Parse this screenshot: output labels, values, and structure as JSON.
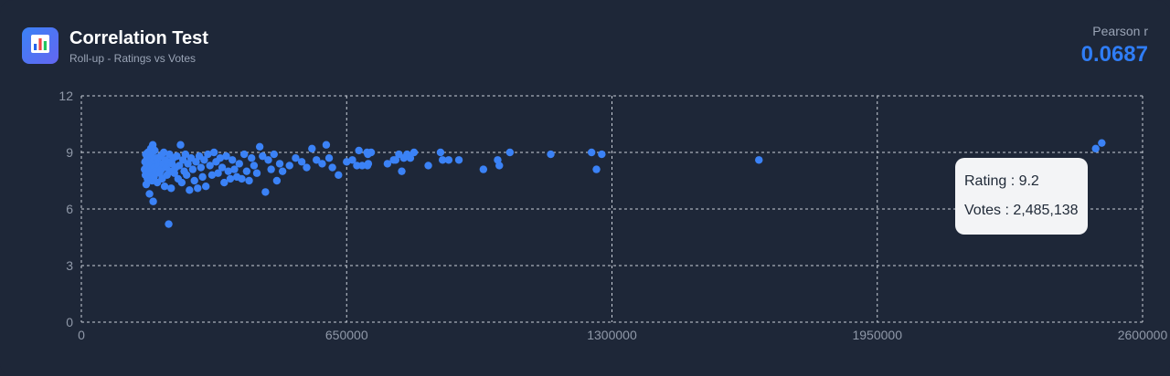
{
  "header": {
    "title": "Correlation Test",
    "subtitle": "Roll-up - Ratings vs Votes",
    "metric_label": "Pearson r",
    "metric_value": "0.0687"
  },
  "tooltip": {
    "rating_text": "Rating : 9.2",
    "votes_text": "Votes : 2,485,138"
  },
  "colors": {
    "background": "#1e2738",
    "point": "#3b82f6",
    "accent": "#2f7df6",
    "grid": "#c9cfd8",
    "tick": "#8f98a8"
  },
  "icons": {
    "logo": "bar-chart-icon"
  },
  "chart_data": {
    "type": "scatter",
    "title": "",
    "xlabel": "",
    "ylabel": "",
    "xlim": [
      0,
      2600000
    ],
    "ylim": [
      0,
      12
    ],
    "x_ticks": [
      "0",
      "650000",
      "1300000",
      "1950000",
      "2600000"
    ],
    "y_ticks": [
      "0",
      "3",
      "6",
      "9",
      "12"
    ],
    "grid": true,
    "series": [
      {
        "points": [
          [
            155000,
            8.1
          ],
          [
            156000,
            8.5
          ],
          [
            157000,
            7.8
          ],
          [
            158000,
            8.9
          ],
          [
            159000,
            7.3
          ],
          [
            160000,
            8.3
          ],
          [
            161000,
            8.7
          ],
          [
            162000,
            7.6
          ],
          [
            163000,
            9.0
          ],
          [
            164000,
            8.0
          ],
          [
            165000,
            8.6
          ],
          [
            166000,
            8.2
          ],
          [
            167000,
            6.8
          ],
          [
            168000,
            8.4
          ],
          [
            169000,
            7.9
          ],
          [
            170000,
            9.2
          ],
          [
            171000,
            8.1
          ],
          [
            172000,
            8.8
          ],
          [
            173000,
            7.5
          ],
          [
            174000,
            8.3
          ],
          [
            175000,
            9.4
          ],
          [
            176000,
            6.4
          ],
          [
            177000,
            8.6
          ],
          [
            178000,
            7.7
          ],
          [
            179000,
            8.2
          ],
          [
            180000,
            9.1
          ],
          [
            182000,
            8.0
          ],
          [
            184000,
            8.7
          ],
          [
            186000,
            7.4
          ],
          [
            188000,
            8.5
          ],
          [
            190000,
            8.3
          ],
          [
            192000,
            7.9
          ],
          [
            194000,
            8.8
          ],
          [
            196000,
            8.1
          ],
          [
            198000,
            7.6
          ],
          [
            200000,
            8.4
          ],
          [
            202000,
            9.0
          ],
          [
            204000,
            7.2
          ],
          [
            206000,
            8.6
          ],
          [
            208000,
            8.2
          ],
          [
            210000,
            7.8
          ],
          [
            212000,
            8.5
          ],
          [
            214000,
            5.2
          ],
          [
            216000,
            8.9
          ],
          [
            218000,
            8.0
          ],
          [
            220000,
            7.1
          ],
          [
            222000,
            8.4
          ],
          [
            225000,
            8.7
          ],
          [
            228000,
            7.9
          ],
          [
            231000,
            8.2
          ],
          [
            234000,
            8.8
          ],
          [
            237000,
            7.6
          ],
          [
            240000,
            8.3
          ],
          [
            243000,
            9.4
          ],
          [
            246000,
            7.4
          ],
          [
            249000,
            8.6
          ],
          [
            252000,
            8.0
          ],
          [
            255000,
            8.9
          ],
          [
            258000,
            7.8
          ],
          [
            261000,
            8.4
          ],
          [
            265000,
            7.0
          ],
          [
            269000,
            8.7
          ],
          [
            273000,
            8.1
          ],
          [
            277000,
            7.5
          ],
          [
            281000,
            8.5
          ],
          [
            285000,
            7.1
          ],
          [
            289000,
            8.8
          ],
          [
            293000,
            8.2
          ],
          [
            297000,
            7.7
          ],
          [
            301000,
            8.6
          ],
          [
            305000,
            7.2
          ],
          [
            310000,
            8.9
          ],
          [
            315000,
            8.3
          ],
          [
            320000,
            7.8
          ],
          [
            325000,
            9.0
          ],
          [
            330000,
            8.5
          ],
          [
            335000,
            7.9
          ],
          [
            340000,
            8.7
          ],
          [
            345000,
            8.2
          ],
          [
            350000,
            7.4
          ],
          [
            355000,
            8.8
          ],
          [
            360000,
            8.0
          ],
          [
            365000,
            7.6
          ],
          [
            370000,
            8.6
          ],
          [
            375000,
            8.1
          ],
          [
            381000,
            7.7
          ],
          [
            387000,
            8.4
          ],
          [
            393000,
            7.6
          ],
          [
            399000,
            8.9
          ],
          [
            405000,
            8.0
          ],
          [
            411000,
            7.5
          ],
          [
            417000,
            8.7
          ],
          [
            423000,
            8.3
          ],
          [
            430000,
            7.9
          ],
          [
            437000,
            9.3
          ],
          [
            444000,
            8.8
          ],
          [
            451000,
            6.9
          ],
          [
            458000,
            8.6
          ],
          [
            465000,
            8.1
          ],
          [
            472000,
            8.9
          ],
          [
            479000,
            7.5
          ],
          [
            486000,
            8.4
          ],
          [
            493000,
            8.0
          ],
          [
            510000,
            8.3
          ],
          [
            525000,
            8.7
          ],
          [
            540000,
            8.5
          ],
          [
            552000,
            8.2
          ],
          [
            565000,
            9.2
          ],
          [
            576000,
            8.6
          ],
          [
            590000,
            8.4
          ],
          [
            600000,
            9.4
          ],
          [
            607000,
            8.7
          ],
          [
            615000,
            8.2
          ],
          [
            630000,
            7.8
          ],
          [
            650000,
            8.5
          ],
          [
            664000,
            8.6
          ],
          [
            675000,
            8.3
          ],
          [
            680000,
            9.1
          ],
          [
            688000,
            8.3
          ],
          [
            700000,
            9.0
          ],
          [
            701000,
            8.3
          ],
          [
            702000,
            8.9
          ],
          [
            703000,
            8.4
          ],
          [
            710000,
            9.0
          ],
          [
            750000,
            8.4
          ],
          [
            765000,
            8.6
          ],
          [
            770000,
            8.6
          ],
          [
            778000,
            8.9
          ],
          [
            785000,
            8.0
          ],
          [
            790000,
            8.7
          ],
          [
            798000,
            8.9
          ],
          [
            806000,
            8.7
          ],
          [
            815000,
            9.0
          ],
          [
            850000,
            8.3
          ],
          [
            880000,
            9.0
          ],
          [
            885000,
            8.6
          ],
          [
            900000,
            8.6
          ],
          [
            925000,
            8.6
          ],
          [
            985000,
            8.1
          ],
          [
            1020000,
            8.6
          ],
          [
            1024000,
            8.3
          ],
          [
            1050000,
            9.0
          ],
          [
            1150000,
            8.9
          ],
          [
            1250000,
            9.0
          ],
          [
            1262000,
            8.1
          ],
          [
            1275000,
            8.9
          ],
          [
            1660000,
            8.6
          ],
          [
            2500000,
            9.5
          ],
          [
            2485138,
            9.2
          ]
        ]
      }
    ]
  }
}
